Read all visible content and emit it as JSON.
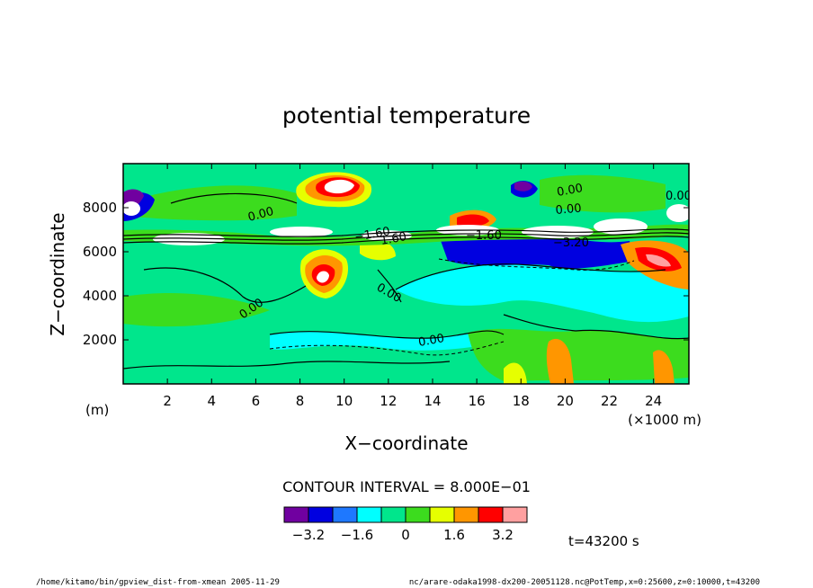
{
  "chart_data": {
    "type": "heatmap",
    "title": "potential temperature",
    "xlabel": "X−coordinate",
    "ylabel": "Z−coordinate",
    "x_unit_label": "(×1000 m)",
    "y_unit_label": "(m)",
    "x_ticks": [
      2,
      4,
      6,
      8,
      10,
      12,
      14,
      16,
      18,
      20,
      22,
      24
    ],
    "x_tick_labels": [
      "2",
      "4",
      "6",
      "8",
      "10",
      "12",
      "14",
      "16",
      "18",
      "20",
      "22",
      "24"
    ],
    "y_ticks": [
      2000,
      4000,
      6000,
      8000
    ],
    "y_tick_labels": [
      "2000",
      "4000",
      "6000",
      "8000"
    ],
    "xlim": [
      0,
      25.6
    ],
    "ylim": [
      0,
      10000
    ],
    "contour_interval_text": "CONTOUR INTERVAL = 8.000E−01",
    "contour_labels": [
      "0.00",
      "0.00",
      "0.00",
      "0.00",
      "0.00",
      "0.00",
      "0.00",
      "−1.60",
      "−1.60",
      "−3.20",
      "1.60"
    ],
    "colorbar": {
      "levels": [
        -4.0,
        -3.2,
        -2.4,
        -1.6,
        -0.8,
        0,
        0.8,
        1.6,
        2.4,
        3.2,
        4.0
      ],
      "tick_values": [
        -3.2,
        -1.6,
        0,
        1.6,
        3.2
      ],
      "tick_labels": [
        "−3.2",
        "−1.6",
        "0",
        "1.6",
        "3.2"
      ],
      "colors": [
        "#7000a0",
        "#0000e0",
        "#1e78ff",
        "#00ffff",
        "#00e68c",
        "#3cdc1e",
        "#e6ff00",
        "#ff9600",
        "#ff0000",
        "#ffa0a0"
      ]
    },
    "time_label": "t=43200 s"
  },
  "footer": {
    "left": "/home/kitamo/bin/gpview_dist-from-xmean  2005-11-29",
    "right": "nc/arare-odaka1998-dx200-20051128.nc@PotTemp,x=0:25600,z=0:10000,t=43200"
  }
}
